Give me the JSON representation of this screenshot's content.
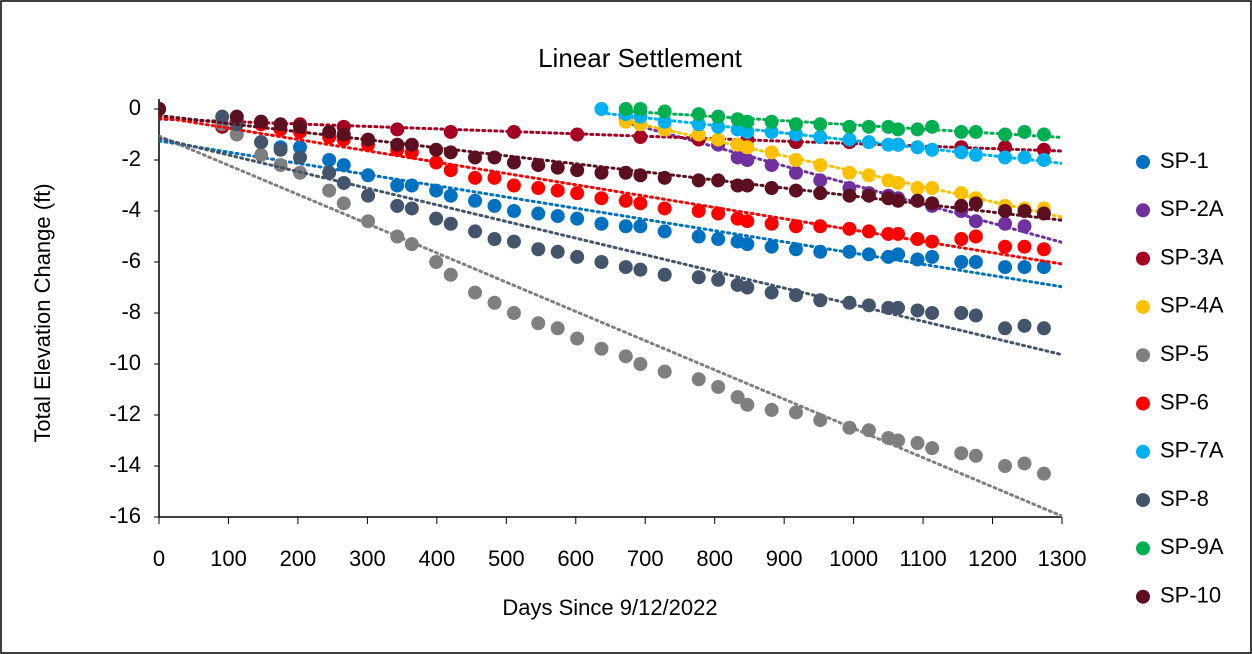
{
  "chart_data": {
    "type": "scatter",
    "title": "Linear Settlement",
    "x_label": "Days Since 9/12/2022",
    "y_label": "Total Elevation Change (ft)",
    "xlim": [
      0,
      1300
    ],
    "xticks": [
      0,
      100,
      200,
      300,
      400,
      500,
      600,
      700,
      800,
      900,
      1000,
      1100,
      1200,
      1300
    ],
    "ylim": [
      -16,
      0
    ],
    "yticks": [
      0,
      -2,
      -4,
      -6,
      -8,
      -10,
      -12,
      -14,
      -16
    ],
    "grid": false,
    "trendline": true,
    "legend": "right",
    "series": [
      {
        "name": "SP-1",
        "color": "#0070c0",
        "x": [
          0,
          147,
          175,
          203,
          245,
          266,
          301,
          343,
          364,
          399,
          420,
          455,
          483,
          511,
          546,
          574,
          602,
          637,
          672,
          693,
          728,
          777,
          805,
          833,
          847,
          882,
          917,
          952,
          994,
          1022,
          1050,
          1064,
          1092,
          1113,
          1155,
          1176,
          1218,
          1246,
          1274
        ],
        "values": [
          0,
          -1.3,
          -1.5,
          -1.5,
          -2.0,
          -2.2,
          -2.6,
          -3.0,
          -3.0,
          -3.2,
          -3.4,
          -3.6,
          -3.8,
          -4.0,
          -4.1,
          -4.2,
          -4.3,
          -4.5,
          -4.6,
          -4.6,
          -4.8,
          -5.0,
          -5.1,
          -5.2,
          -5.3,
          -5.4,
          -5.5,
          -5.6,
          -5.6,
          -5.7,
          -5.8,
          -5.7,
          -5.9,
          -5.8,
          -6.0,
          -6.0,
          -6.2,
          -6.2,
          -6.2
        ]
      },
      {
        "name": "SP-2A",
        "color": "#7030a0",
        "x": [
          672,
          693,
          728,
          777,
          805,
          833,
          847,
          882,
          917,
          952,
          994,
          1022,
          1050,
          1064,
          1092,
          1113,
          1155,
          1176,
          1218,
          1246
        ],
        "values": [
          -0.4,
          -0.6,
          -0.8,
          -1.1,
          -1.4,
          -1.9,
          -2.0,
          -2.2,
          -2.5,
          -2.8,
          -3.1,
          -3.3,
          -3.4,
          -3.5,
          -3.6,
          -3.8,
          -4.0,
          -4.4,
          -4.5,
          -4.6
        ]
      },
      {
        "name": "SP-3A",
        "color": "#a50021",
        "x": [
          0,
          91,
          147,
          203,
          266,
          343,
          420,
          511,
          602,
          693,
          777,
          847,
          917,
          994,
          1064,
          1155,
          1218,
          1274
        ],
        "values": [
          0,
          -0.7,
          -0.5,
          -0.6,
          -0.7,
          -0.8,
          -0.9,
          -0.9,
          -1.0,
          -1.1,
          -1.2,
          -1.2,
          -1.3,
          -1.3,
          -1.4,
          -1.5,
          -1.5,
          -1.6
        ]
      },
      {
        "name": "SP-4A",
        "color": "#ffc000",
        "x": [
          672,
          693,
          728,
          777,
          805,
          833,
          847,
          882,
          917,
          952,
          994,
          1022,
          1050,
          1064,
          1092,
          1113,
          1155,
          1176,
          1218,
          1246,
          1274
        ],
        "values": [
          -0.5,
          -0.6,
          -0.8,
          -1.0,
          -1.2,
          -1.4,
          -1.5,
          -1.7,
          -2.0,
          -2.2,
          -2.5,
          -2.6,
          -2.8,
          -2.9,
          -3.1,
          -3.1,
          -3.3,
          -3.5,
          -3.8,
          -3.9,
          -3.9
        ]
      },
      {
        "name": "SP-5",
        "color": "#7f7f7f",
        "x": [
          0,
          91,
          112,
          147,
          175,
          203,
          245,
          266,
          301,
          343,
          364,
          399,
          420,
          455,
          483,
          511,
          546,
          574,
          602,
          637,
          672,
          693,
          728,
          777,
          805,
          833,
          847,
          882,
          917,
          952,
          994,
          1022,
          1050,
          1064,
          1092,
          1113,
          1155,
          1176,
          1218,
          1246,
          1274
        ],
        "values": [
          0,
          -0.6,
          -1.0,
          -1.8,
          -2.2,
          -2.5,
          -3.2,
          -3.7,
          -4.4,
          -5.0,
          -5.3,
          -6.0,
          -6.5,
          -7.2,
          -7.6,
          -8.0,
          -8.4,
          -8.6,
          -9.0,
          -9.4,
          -9.7,
          -10.0,
          -10.3,
          -10.6,
          -10.9,
          -11.3,
          -11.6,
          -11.8,
          -11.9,
          -12.2,
          -12.5,
          -12.6,
          -12.9,
          -13.0,
          -13.1,
          -13.3,
          -13.5,
          -13.6,
          -14.0,
          -13.9,
          -14.3
        ]
      },
      {
        "name": "SP-6",
        "color": "#ff0000",
        "x": [
          0,
          112,
          147,
          175,
          203,
          245,
          266,
          301,
          343,
          364,
          399,
          420,
          455,
          483,
          511,
          546,
          574,
          602,
          637,
          672,
          693,
          728,
          777,
          805,
          833,
          847,
          882,
          917,
          952,
          994,
          1022,
          1050,
          1064,
          1092,
          1113,
          1155,
          1176,
          1218,
          1246,
          1274
        ],
        "values": [
          0,
          -0.5,
          -0.6,
          -0.8,
          -0.9,
          -1.1,
          -1.2,
          -1.4,
          -1.6,
          -1.7,
          -2.1,
          -2.4,
          -2.7,
          -2.7,
          -3.0,
          -3.1,
          -3.2,
          -3.3,
          -3.5,
          -3.6,
          -3.7,
          -3.9,
          -4.0,
          -4.1,
          -4.3,
          -4.4,
          -4.5,
          -4.6,
          -4.6,
          -4.7,
          -4.8,
          -4.9,
          -4.9,
          -5.1,
          -5.2,
          -5.1,
          -5.0,
          -5.4,
          -5.4,
          -5.5
        ]
      },
      {
        "name": "SP-7A",
        "color": "#00b0f0",
        "x": [
          637,
          672,
          693,
          728,
          777,
          805,
          833,
          847,
          882,
          917,
          952,
          994,
          1022,
          1050,
          1064,
          1092,
          1113,
          1155,
          1176,
          1218,
          1246,
          1274
        ],
        "values": [
          0,
          -0.2,
          -0.3,
          -0.5,
          -0.6,
          -0.7,
          -0.8,
          -0.9,
          -0.9,
          -1.0,
          -1.1,
          -1.2,
          -1.3,
          -1.4,
          -1.4,
          -1.5,
          -1.6,
          -1.7,
          -1.8,
          -1.9,
          -1.9,
          -2.0
        ]
      },
      {
        "name": "SP-8",
        "color": "#44546a",
        "x": [
          0,
          91,
          112,
          147,
          175,
          203,
          245,
          266,
          301,
          343,
          364,
          399,
          420,
          455,
          483,
          511,
          546,
          574,
          602,
          637,
          672,
          693,
          728,
          777,
          805,
          833,
          847,
          882,
          917,
          952,
          994,
          1022,
          1050,
          1064,
          1092,
          1113,
          1155,
          1176,
          1218,
          1246,
          1274
        ],
        "values": [
          0,
          -0.3,
          -0.6,
          -1.3,
          -1.6,
          -1.9,
          -2.5,
          -2.9,
          -3.4,
          -3.8,
          -3.9,
          -4.3,
          -4.5,
          -4.8,
          -5.1,
          -5.2,
          -5.5,
          -5.6,
          -5.8,
          -6.0,
          -6.2,
          -6.3,
          -6.5,
          -6.6,
          -6.7,
          -6.9,
          -7.0,
          -7.2,
          -7.3,
          -7.5,
          -7.6,
          -7.7,
          -7.8,
          -7.8,
          -7.9,
          -8.0,
          -8.0,
          -8.1,
          -8.6,
          -8.5,
          -8.6
        ]
      },
      {
        "name": "SP-9A",
        "color": "#00b050",
        "x": [
          672,
          693,
          728,
          777,
          805,
          833,
          847,
          882,
          917,
          952,
          994,
          1022,
          1050,
          1064,
          1092,
          1113,
          1155,
          1176,
          1218,
          1246,
          1274
        ],
        "values": [
          0,
          0,
          -0.1,
          -0.2,
          -0.3,
          -0.4,
          -0.5,
          -0.5,
          -0.6,
          -0.6,
          -0.7,
          -0.7,
          -0.7,
          -0.8,
          -0.8,
          -0.7,
          -0.9,
          -0.9,
          -1.0,
          -0.9,
          -1.0
        ]
      },
      {
        "name": "SP-10",
        "color": "#5b0f1f",
        "x": [
          0,
          112,
          147,
          175,
          203,
          245,
          266,
          301,
          343,
          364,
          399,
          420,
          455,
          483,
          511,
          546,
          574,
          602,
          637,
          672,
          693,
          728,
          777,
          805,
          833,
          847,
          882,
          917,
          952,
          994,
          1022,
          1050,
          1064,
          1092,
          1113,
          1155,
          1176,
          1218,
          1246,
          1274
        ],
        "values": [
          0,
          -0.3,
          -0.5,
          -0.6,
          -0.7,
          -0.9,
          -1.0,
          -1.2,
          -1.4,
          -1.4,
          -1.6,
          -1.7,
          -1.9,
          -1.9,
          -2.1,
          -2.2,
          -2.3,
          -2.4,
          -2.5,
          -2.5,
          -2.6,
          -2.7,
          -2.8,
          -2.8,
          -3.0,
          -3.0,
          -3.1,
          -3.2,
          -3.3,
          -3.4,
          -3.4,
          -3.5,
          -3.6,
          -3.6,
          -3.7,
          -3.8,
          -3.7,
          -4.0,
          -4.0,
          -4.1
        ]
      }
    ]
  }
}
